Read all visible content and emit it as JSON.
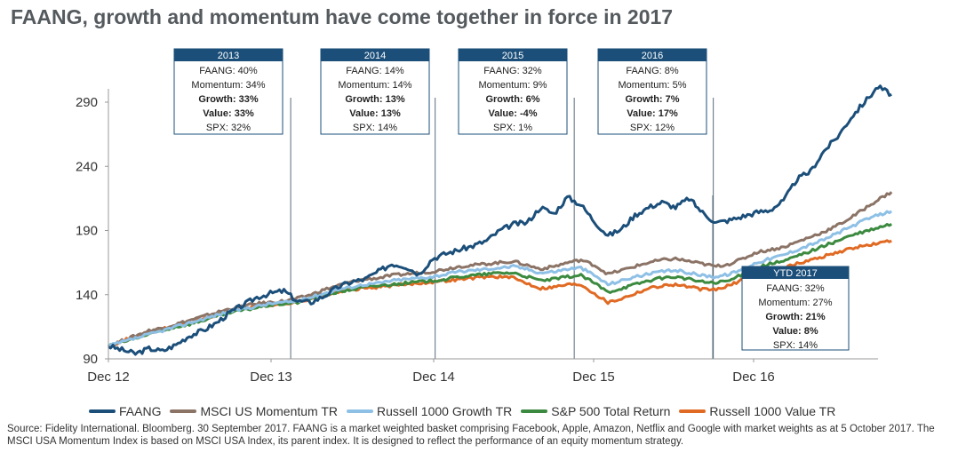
{
  "chart_data": {
    "type": "line",
    "title": "FAANG, growth and momentum have come together in force in 2017",
    "x_ticks": [
      "Dec 12",
      "Dec 13",
      "Dec 14",
      "Dec 15",
      "Dec 16"
    ],
    "y_ticks": [
      90,
      140,
      190,
      240,
      290
    ],
    "ylim": [
      88,
      315
    ],
    "xlim": [
      0,
      57
    ],
    "grid": false,
    "year_markers": [
      13.5,
      24.2,
      34.5,
      44.8
    ],
    "series": [
      {
        "name": "FAANG",
        "color": "#1b4f7a",
        "width": 3,
        "values": [
          100,
          97,
          94,
          98,
          96,
          101,
          108,
          112,
          118,
          126,
          132,
          138,
          141,
          143,
          135,
          134,
          139,
          146,
          150,
          152,
          158,
          164,
          162,
          156,
          168,
          172,
          175,
          178,
          182,
          190,
          195,
          196,
          208,
          203,
          216,
          210,
          197,
          186,
          191,
          202,
          208,
          212,
          208,
          215,
          204,
          196,
          198,
          201,
          204,
          206,
          213,
          230,
          236,
          252,
          263,
          278,
          290,
          302,
          296
        ]
      },
      {
        "name": "MSCI US Momentum TR",
        "color": "#8b7366",
        "width": 3,
        "values": [
          100,
          104,
          108,
          112,
          114,
          117,
          120,
          123,
          126,
          129,
          131,
          133,
          134,
          135,
          137,
          140,
          144,
          147,
          150,
          152,
          153,
          155,
          156,
          157,
          158,
          160,
          162,
          163,
          164,
          165,
          166,
          163,
          160,
          162,
          165,
          167,
          163,
          156,
          159,
          162,
          165,
          167,
          168,
          166,
          164,
          162,
          164,
          168,
          173,
          175,
          177,
          181,
          185,
          189,
          194,
          200,
          207,
          214,
          220
        ]
      },
      {
        "name": "Russell 1000 Growth TR",
        "color": "#8ec0e6",
        "width": 3,
        "values": [
          100,
          103,
          106,
          109,
          112,
          115,
          118,
          121,
          124,
          127,
          129,
          131,
          133,
          134,
          135,
          138,
          141,
          144,
          146,
          148,
          149,
          151,
          152,
          153,
          154,
          156,
          158,
          159,
          160,
          161,
          162,
          160,
          157,
          158,
          160,
          161,
          155,
          148,
          151,
          154,
          156,
          158,
          159,
          157,
          155,
          154,
          156,
          160,
          165,
          168,
          171,
          175,
          179,
          183,
          188,
          193,
          198,
          202,
          205
        ]
      },
      {
        "name": "S&P 500 Total Return",
        "color": "#3b8a3f",
        "width": 3,
        "values": [
          100,
          103,
          106,
          109,
          112,
          115,
          117,
          120,
          123,
          126,
          128,
          130,
          132,
          133,
          134,
          137,
          140,
          142,
          144,
          146,
          147,
          148,
          149,
          150,
          151,
          152,
          154,
          155,
          156,
          157,
          157,
          154,
          151,
          152,
          154,
          155,
          149,
          142,
          145,
          148,
          151,
          153,
          154,
          152,
          150,
          149,
          151,
          156,
          161,
          164,
          166,
          170,
          174,
          178,
          182,
          186,
          189,
          192,
          195
        ]
      },
      {
        "name": "Russell 1000 Value TR",
        "color": "#e06a23",
        "width": 3,
        "values": [
          100,
          104,
          107,
          110,
          113,
          116,
          118,
          121,
          124,
          127,
          129,
          131,
          132,
          133,
          134,
          137,
          140,
          142,
          144,
          145,
          146,
          147,
          148,
          149,
          150,
          151,
          152,
          153,
          154,
          154,
          153,
          149,
          145,
          146,
          148,
          148,
          141,
          134,
          137,
          141,
          145,
          147,
          148,
          146,
          144,
          144,
          147,
          152,
          157,
          160,
          161,
          164,
          167,
          170,
          173,
          176,
          178,
          180,
          182
        ]
      }
    ],
    "annotations": [
      {
        "header": "2013",
        "lines": [
          "FAANG: 40%",
          "Momentum: 34%",
          "Growth: 33%",
          "Value: 33%",
          "SPX: 32%"
        ]
      },
      {
        "header": "2014",
        "lines": [
          "FAANG: 14%",
          "Momentum: 14%",
          "Growth: 13%",
          "Value: 13%",
          "SPX: 14%"
        ]
      },
      {
        "header": "2015",
        "lines": [
          "FAANG: 32%",
          "Momentum: 9%",
          "Growth: 6%",
          "Value: -4%",
          "SPX: 1%"
        ]
      },
      {
        "header": "2016",
        "lines": [
          "FAANG: 8%",
          "Momentum: 5%",
          "Growth: 7%",
          "Value: 17%",
          "SPX: 12%"
        ]
      },
      {
        "header": "YTD 2017",
        "lines": [
          "FAANG: 32%",
          "Momentum: 27%",
          "Growth: 21%",
          "Value: 8%",
          "SPX: 14%"
        ]
      }
    ]
  },
  "colors": {
    "box_header": "#1b4f7a",
    "growth_text": "#8ec0e6",
    "value_text": "#e06a23",
    "marker": "#5a6b7a"
  },
  "source": "Source: Fidelity International. Bloomberg. 30 September 2017. FAANG is a market weighted basket comprising Facebook, Apple, Amazon, Netflix and Google with market weights as at 5 October 2017. The MSCI USA Momentum Index is based on MSCI USA Index, its parent index. It is designed to reflect the performance of an equity momentum strategy."
}
